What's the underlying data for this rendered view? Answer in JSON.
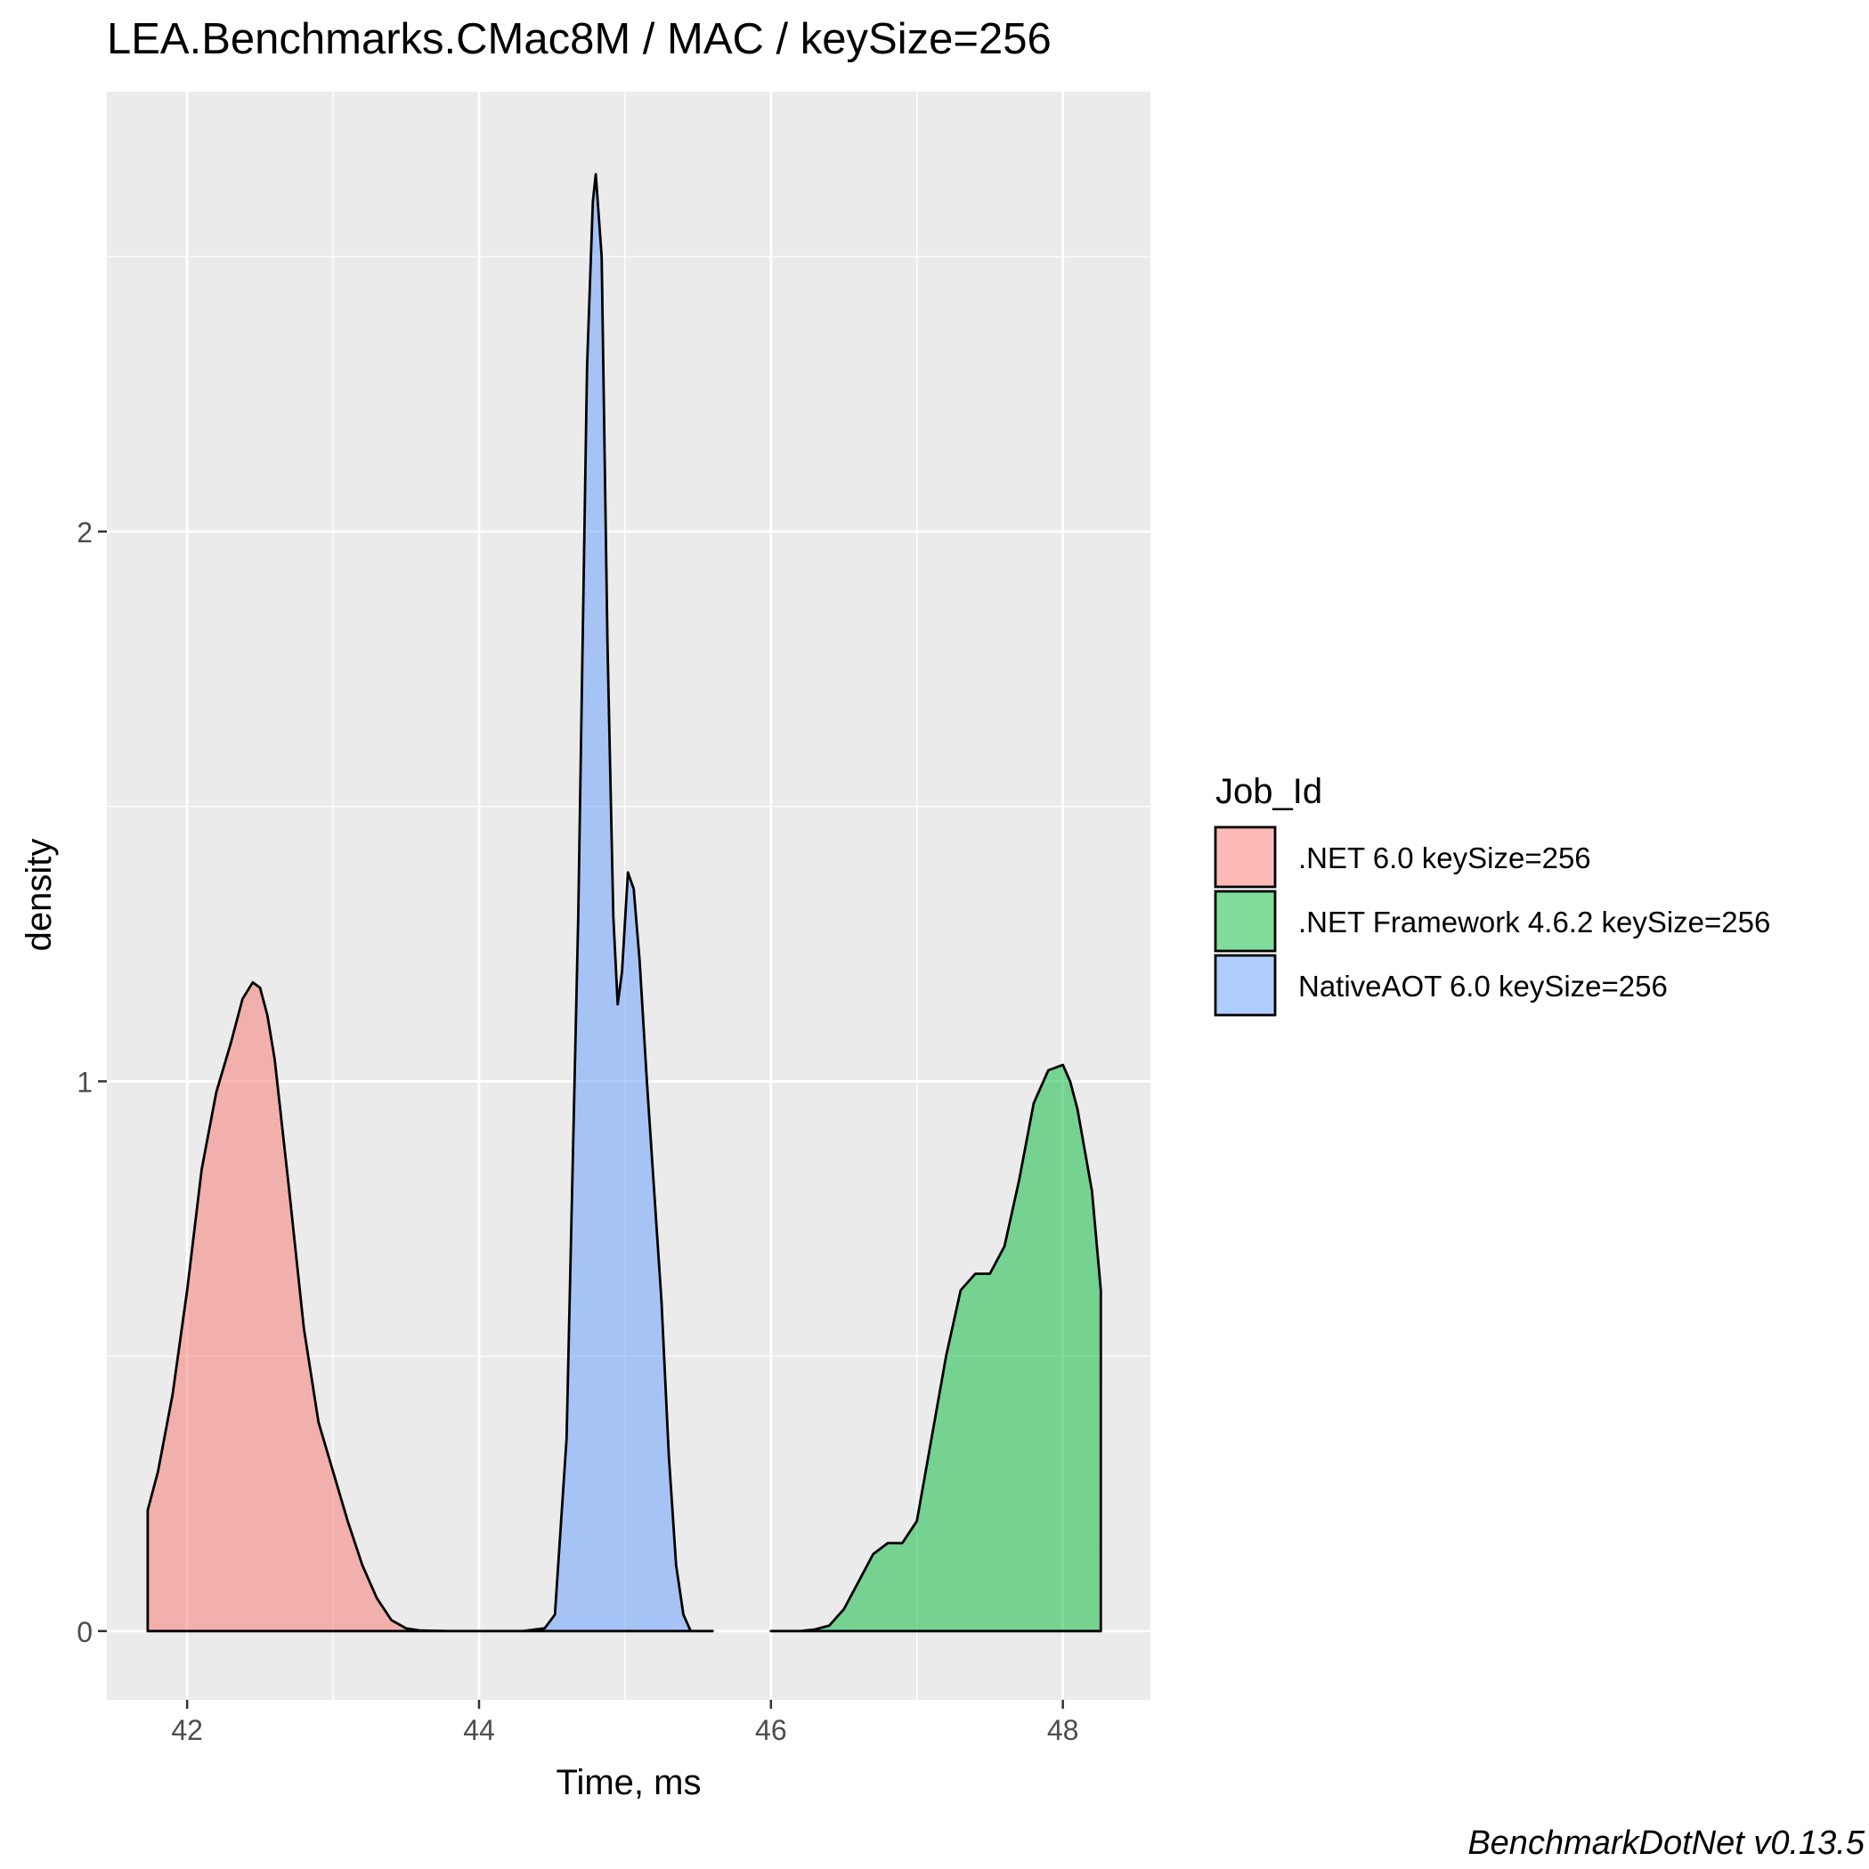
{
  "chart_data": {
    "type": "area",
    "title": "LEA.Benchmarks.CMac8M / MAC / keySize=256",
    "xlabel": "Time, ms",
    "ylabel": "density",
    "xlim": [
      41.45,
      48.6
    ],
    "ylim": [
      -0.125,
      2.8
    ],
    "x_ticks": [
      "42",
      "44",
      "46",
      "48"
    ],
    "y_ticks": [
      "0",
      "1",
      "2"
    ],
    "grid": true,
    "legend": {
      "title": "Job_Id",
      "position": "right",
      "entries": [
        ".NET 6.0 keySize=256",
        ".NET Framework 4.6.2 keySize=256",
        "NativeAOT 6.0 keySize=256"
      ]
    },
    "caption": "BenchmarkDotNet v0.13.5",
    "series": [
      {
        "name": ".NET 6.0 keySize=256",
        "color": "#F8766D",
        "x": [
          41.73,
          41.8,
          41.9,
          42.0,
          42.1,
          42.2,
          42.3,
          42.38,
          42.45,
          42.5,
          42.55,
          42.6,
          42.7,
          42.8,
          42.9,
          43.0,
          43.1,
          43.2,
          43.3,
          43.4,
          43.5,
          43.6,
          43.8,
          44.0,
          44.3
        ],
        "y": [
          0.22,
          0.29,
          0.43,
          0.62,
          0.84,
          0.98,
          1.07,
          1.15,
          1.18,
          1.17,
          1.12,
          1.04,
          0.8,
          0.55,
          0.38,
          0.29,
          0.2,
          0.12,
          0.06,
          0.02,
          0.005,
          0.001,
          0.0,
          0.0,
          0.0
        ]
      },
      {
        "name": "NativeAOT 6.0 keySize=256",
        "color": "#619CFF",
        "x": [
          44.3,
          44.45,
          44.52,
          44.6,
          44.68,
          44.74,
          44.78,
          44.8,
          44.84,
          44.88,
          44.92,
          44.95,
          44.98,
          45.02,
          45.06,
          45.1,
          45.15,
          45.2,
          45.25,
          45.3,
          45.35,
          45.4,
          45.45,
          45.6
        ],
        "y": [
          0.0,
          0.005,
          0.03,
          0.35,
          1.3,
          2.3,
          2.6,
          2.65,
          2.5,
          1.8,
          1.3,
          1.14,
          1.2,
          1.38,
          1.35,
          1.22,
          1.0,
          0.8,
          0.6,
          0.32,
          0.12,
          0.03,
          0.0,
          0.0
        ]
      },
      {
        "name": ".NET Framework 4.6.2 keySize=256",
        "color": "#00BA38",
        "x": [
          46.0,
          46.2,
          46.3,
          46.4,
          46.5,
          46.6,
          46.7,
          46.8,
          46.9,
          47.0,
          47.1,
          47.2,
          47.3,
          47.4,
          47.5,
          47.6,
          47.7,
          47.8,
          47.9,
          48.0,
          48.05,
          48.1,
          48.2,
          48.26
        ],
        "y": [
          0.0,
          0.0,
          0.003,
          0.01,
          0.04,
          0.09,
          0.14,
          0.16,
          0.16,
          0.2,
          0.35,
          0.5,
          0.62,
          0.65,
          0.65,
          0.7,
          0.82,
          0.96,
          1.02,
          1.03,
          1.0,
          0.95,
          0.8,
          0.62
        ]
      }
    ]
  }
}
